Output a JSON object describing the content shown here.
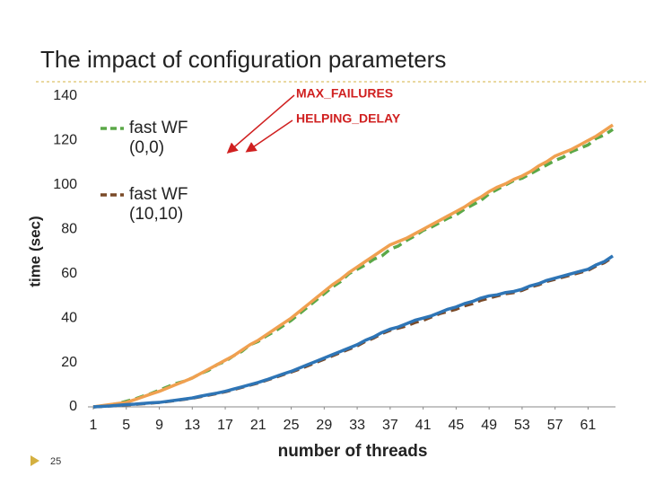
{
  "slide": {
    "title": "The impact of configuration parameters",
    "page_number": "25"
  },
  "chart_data": {
    "type": "line",
    "y_label": "time (sec)",
    "x_label": "number of threads",
    "annotations": [
      "MAX_FAILURES",
      "HELPING_DELAY"
    ],
    "x": [
      1,
      2,
      3,
      4,
      5,
      6,
      7,
      8,
      9,
      10,
      11,
      12,
      13,
      14,
      15,
      16,
      17,
      18,
      19,
      20,
      21,
      22,
      23,
      24,
      25,
      26,
      27,
      28,
      29,
      30,
      31,
      32,
      33,
      34,
      35,
      36,
      37,
      38,
      39,
      40,
      41,
      42,
      43,
      44,
      45,
      46,
      47,
      48,
      49,
      50,
      51,
      52,
      53,
      54,
      55,
      56,
      57,
      58,
      59,
      60,
      61,
      62,
      63,
      64
    ],
    "xlim": [
      1,
      64
    ],
    "xticks": [
      1,
      5,
      9,
      13,
      17,
      21,
      25,
      29,
      33,
      37,
      41,
      45,
      49,
      53,
      57,
      61
    ],
    "ylim": [
      0,
      140
    ],
    "yticks": [
      0,
      20,
      40,
      60,
      80,
      100,
      120,
      140
    ],
    "series": [
      {
        "name": "fast WF (0,0)",
        "color": "#5ba848",
        "dashed": true,
        "values": [
          0,
          0.3,
          0.8,
          1.5,
          2.5,
          3.5,
          4.8,
          6,
          7.5,
          9,
          10.5,
          11.5,
          13,
          15,
          16.5,
          19,
          20.5,
          23,
          25,
          28,
          29.5,
          32,
          34,
          36.5,
          39,
          42,
          45,
          48,
          51,
          54,
          56.5,
          60,
          62,
          64,
          66.5,
          68,
          71,
          72.5,
          75,
          77,
          79.5,
          81,
          83,
          85,
          86.5,
          89,
          91,
          93,
          96,
          98,
          100,
          102,
          103,
          105,
          107,
          109,
          111,
          112.5,
          115,
          116.5,
          118,
          121,
          122.5,
          125
        ]
      },
      {
        "color": "#f0a050",
        "dashed": false,
        "values": [
          0,
          0.5,
          1,
          1.5,
          2,
          3.2,
          4.5,
          5.8,
          7,
          8.5,
          10,
          11.5,
          13,
          15,
          17,
          19,
          21,
          23,
          25.5,
          28,
          30,
          32.5,
          35,
          37.5,
          40,
          43,
          46,
          49,
          52,
          55,
          57.5,
          60.5,
          63,
          65.5,
          68,
          70.5,
          73,
          74.5,
          76,
          78,
          80,
          82,
          84,
          86,
          88,
          90,
          92.5,
          94.5,
          97,
          99,
          100.5,
          102.5,
          104,
          106,
          108.5,
          110.5,
          113,
          114.5,
          116,
          118,
          120,
          122,
          124.5,
          127
        ]
      },
      {
        "name": "fast WF (10,10)",
        "color": "#7a4a28",
        "dashed": true,
        "values": [
          0,
          0.2,
          0.4,
          0.6,
          0.9,
          1.1,
          1.4,
          1.7,
          2,
          2.4,
          2.9,
          3.4,
          3.9,
          4.6,
          5.3,
          6,
          6.8,
          7.8,
          8.8,
          9.8,
          10.8,
          12,
          13.2,
          14.5,
          15.7,
          17,
          18.5,
          20,
          21.5,
          23,
          24.5,
          26,
          27.5,
          29.5,
          31,
          33,
          34.5,
          35.5,
          36.5,
          38,
          39,
          40.5,
          42,
          43,
          44,
          45.5,
          46.5,
          48,
          49,
          50,
          51,
          51.5,
          52.5,
          54,
          55,
          56.5,
          57.5,
          58.5,
          59.5,
          60.5,
          61.5,
          63.5,
          65,
          67.5
        ]
      },
      {
        "color": "#2e75b6",
        "dashed": false,
        "values": [
          0,
          0.2,
          0.4,
          0.7,
          1,
          1.2,
          1.5,
          1.8,
          2,
          2.5,
          3,
          3.5,
          4,
          4.8,
          5.5,
          6.2,
          7,
          8,
          9,
          10,
          11,
          12.2,
          13.5,
          14.8,
          16,
          17.5,
          19,
          20.5,
          22,
          23.5,
          25,
          26.5,
          28,
          30,
          31.5,
          33.5,
          35,
          36,
          37.5,
          39,
          40,
          41,
          42.5,
          44,
          45,
          46.5,
          47.5,
          49,
          50,
          50.5,
          51.5,
          52,
          53,
          54.5,
          55.5,
          57,
          58,
          59,
          60,
          61,
          62,
          64,
          65.5,
          68
        ]
      }
    ]
  }
}
